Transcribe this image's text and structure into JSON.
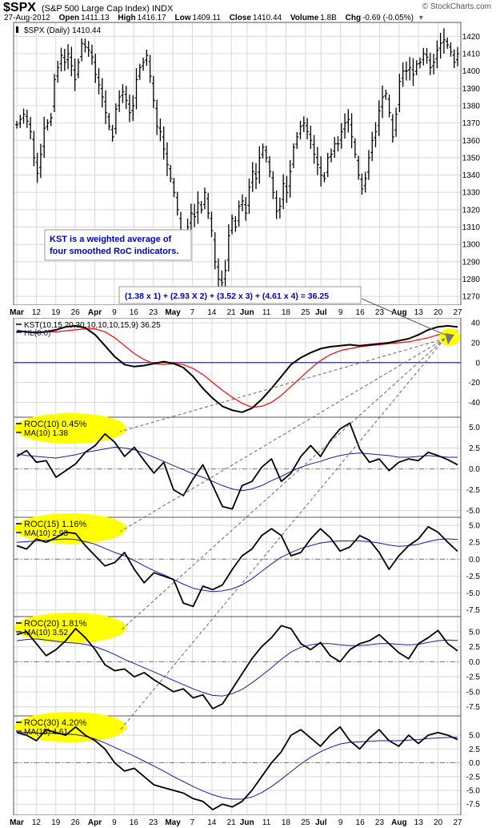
{
  "header": {
    "symbol": "$SPX",
    "name": "(S&P 500 Large Cap Index)",
    "exchange": "INDX",
    "date": "27-Aug-2012",
    "open_label": "Open",
    "open": "1411.13",
    "high_label": "High",
    "high": "1416.17",
    "low_label": "Low",
    "low": "1409.11",
    "close_label": "Close",
    "close": "1410.44",
    "volume_label": "Volume",
    "volume": "1.8B",
    "chg_label": "Chg",
    "chg": "-0.69 (-0.05%)",
    "copyright": "© StockCharts.com"
  },
  "colors": {
    "price_bars": "#000000",
    "kst_line": "#000000",
    "signal_line": "#ff0000",
    "ma_line": "#1a1aa8",
    "highlight": "#ffff00",
    "annotation_text": "#0000cc",
    "grid": "#d8d8d8"
  },
  "chart_data": {
    "type": "line",
    "x_axis_labels": [
      "Mar",
      "12",
      "19",
      "26",
      "Apr",
      "9",
      "16",
      "23",
      "May",
      "7",
      "14",
      "21",
      "Jun",
      "11",
      "18",
      "25",
      "Jul",
      "9",
      "16",
      "23",
      "Aug",
      "13",
      "20",
      "27"
    ],
    "panels": [
      {
        "id": "price",
        "legend": "$SPX (Daily) 1410.44",
        "ylim": [
          1265,
          1428
        ],
        "yticks": [
          1270,
          1280,
          1290,
          1300,
          1310,
          1320,
          1330,
          1340,
          1350,
          1360,
          1370,
          1380,
          1390,
          1400,
          1410,
          1420
        ],
        "series": [
          {
            "name": "$SPX",
            "values": [
              1369,
              1372,
              1375,
              1371,
              1365,
              1350,
              1341,
              1352,
              1367,
              1370,
              1373,
              1395,
              1402,
              1409,
              1405,
              1410,
              1403,
              1395,
              1405,
              1416,
              1414,
              1412,
              1408,
              1398,
              1392,
              1385,
              1376,
              1368,
              1362,
              1378,
              1385,
              1388,
              1383,
              1376,
              1380,
              1395,
              1402,
              1405,
              1409,
              1397,
              1383,
              1368,
              1365,
              1355,
              1346,
              1338,
              1330,
              1320,
              1303,
              1295,
              1310,
              1318,
              1316,
              1324,
              1320,
              1330,
              1318,
              1308,
              1290,
              1280,
              1278,
              1285,
              1305,
              1315,
              1310,
              1322,
              1325,
              1318,
              1333,
              1342,
              1338,
              1350,
              1356,
              1350,
              1342,
              1330,
              1319,
              1322,
              1335,
              1330,
              1342,
              1356,
              1362,
              1368,
              1370,
              1365,
              1360,
              1352,
              1346,
              1340,
              1338,
              1350,
              1352,
              1358,
              1358,
              1365,
              1370,
              1372,
              1362,
              1352,
              1340,
              1332,
              1338,
              1350,
              1360,
              1365,
              1377,
              1385,
              1387,
              1376,
              1362,
              1375,
              1394,
              1400,
              1400,
              1402,
              1398,
              1404,
              1405,
              1410,
              1408,
              1402,
              1405,
              1412,
              1416,
              1418,
              1415,
              1411,
              1405,
              1410
            ]
          }
        ],
        "annotations": [
          "KST is a weighted average of four smoothed RoC indicators.",
          "(1.38 x 1) + (2.93 X 2) + (3.52 x 3) + (4.61 x 4) = 36.25"
        ]
      },
      {
        "id": "kst",
        "legend": [
          "KST(10,15,20,30,10,10,10,15,9) 36.25",
          "HL(0.0)"
        ],
        "ylim": [
          -55,
          45
        ],
        "yticks": [
          -40,
          -20,
          0,
          20,
          40
        ],
        "series": [
          {
            "name": "KST(10,15,20,30,10,10,10,15,9)",
            "values": [
              32,
              31,
              30,
              31,
              33,
              36,
              37,
              35,
              28,
              17,
              6,
              -2,
              -4,
              -3,
              -1,
              1,
              -1,
              -5,
              -14,
              -26,
              -36,
              -44,
              -48,
              -50,
              -46,
              -37,
              -26,
              -14,
              -2,
              5,
              10,
              14,
              16,
              17,
              18,
              17,
              18,
              19,
              20,
              22,
              24,
              28,
              33,
              36,
              37,
              36
            ]
          },
          {
            "name": "Signal",
            "values": [
              32,
              31,
              31,
              31,
              31,
              32,
              33,
              34,
              34,
              31,
              25,
              17,
              9,
              3,
              -1,
              -2,
              -1,
              -2,
              -6,
              -12,
              -20,
              -28,
              -35,
              -41,
              -45,
              -44,
              -40,
              -33,
              -24,
              -15,
              -6,
              2,
              8,
              12,
              14,
              16,
              17,
              18,
              19,
              20,
              21,
              23,
              25,
              28,
              30,
              32
            ]
          }
        ]
      },
      {
        "id": "roc10",
        "legend": [
          "ROC(10) 0.45%",
          "MA(10) 1.38"
        ],
        "ylim": [
          -5.8,
          6.2
        ],
        "yticks": [
          -5.0,
          -2.5,
          0.0,
          2.5,
          5.0
        ],
        "series": [
          {
            "name": "ROC(10)",
            "values": [
              1.5,
              2.2,
              0.8,
              1.0,
              -1.0,
              -0.2,
              0.6,
              2.0,
              2.8,
              4.2,
              3.2,
              1.5,
              2.6,
              1.0,
              -0.5,
              0.8,
              -2.5,
              -3.2,
              -1.2,
              0.5,
              -2.0,
              -4.5,
              -4.8,
              -2.0,
              -1.5,
              0.2,
              1.2,
              -1.5,
              -0.5,
              1.5,
              2.8,
              1.5,
              3.4,
              4.8,
              5.5,
              2.4,
              0.8,
              1.2,
              -0.2,
              0.8,
              1.2,
              1.0,
              2.0,
              1.6,
              1.1,
              0.5
            ]
          },
          {
            "name": "MA(10)",
            "values": [
              1.8,
              1.6,
              1.5,
              1.4,
              1.3,
              1.5,
              1.7,
              2.0,
              2.2,
              2.4,
              2.6,
              2.5,
              2.3,
              1.9,
              1.4,
              0.9,
              0.4,
              -0.1,
              -0.6,
              -1.0,
              -1.5,
              -2.0,
              -2.4,
              -2.6,
              -2.4,
              -2.0,
              -1.4,
              -0.9,
              -0.3,
              0.2,
              0.6,
              0.9,
              1.3,
              1.6,
              1.8,
              1.9,
              1.8,
              1.7,
              1.6,
              1.4,
              1.4,
              1.5,
              1.6,
              1.5,
              1.4,
              1.4
            ]
          }
        ]
      },
      {
        "id": "roc15",
        "legend": [
          "ROC(15) 1.16%",
          "MA(10) 2.93"
        ],
        "ylim": [
          -8.5,
          6.2
        ],
        "yticks": [
          -7.5,
          -5.0,
          -2.5,
          0.0,
          2.5,
          5.0
        ],
        "series": [
          {
            "name": "ROC(15)",
            "values": [
              2.0,
              1.5,
              3.0,
              2.5,
              3.2,
              4.0,
              3.8,
              2.0,
              0.5,
              -1.0,
              -0.5,
              1.0,
              -1.5,
              -3.5,
              -2.0,
              -2.5,
              -3.0,
              -6.5,
              -7.0,
              -4.0,
              -4.5,
              -3.8,
              -1.5,
              0.5,
              1.5,
              3.5,
              4.5,
              3.5,
              0.5,
              1.0,
              3.0,
              4.5,
              3.2,
              1.2,
              1.8,
              3.5,
              2.8,
              1.0,
              -1.5,
              0.5,
              2.0,
              3.0,
              4.8,
              4.0,
              2.5,
              1.16
            ]
          },
          {
            "name": "MA(10)",
            "values": [
              2.5,
              2.6,
              2.7,
              2.8,
              2.9,
              3.0,
              2.9,
              2.6,
              2.2,
              1.6,
              1.0,
              0.5,
              -0.2,
              -1.0,
              -1.7,
              -2.3,
              -3.0,
              -3.7,
              -4.3,
              -4.6,
              -4.8,
              -4.7,
              -4.4,
              -3.8,
              -2.9,
              -1.8,
              -0.7,
              0.3,
              1.0,
              1.6,
              2.0,
              2.4,
              2.6,
              2.7,
              2.7,
              2.7,
              2.6,
              2.4,
              2.1,
              1.9,
              2.0,
              2.2,
              2.6,
              2.9,
              3.0,
              2.93
            ]
          }
        ]
      },
      {
        "id": "roc20",
        "legend": [
          "ROC(20) 1.81%",
          "MA(10) 3.52"
        ],
        "ylim": [
          -9.0,
          7.5
        ],
        "yticks": [
          -7.5,
          -5.0,
          -2.5,
          0.0,
          2.5,
          5.0
        ],
        "series": [
          {
            "name": "ROC(20)",
            "values": [
              4.5,
              5.0,
              3.0,
              1.0,
              2.0,
              3.5,
              5.5,
              4.0,
              2.0,
              -0.5,
              -1.5,
              -1.2,
              -2.5,
              -1.8,
              -3.0,
              -4.0,
              -5.0,
              -4.5,
              -6.0,
              -5.5,
              -7.8,
              -7.0,
              -4.5,
              -2.0,
              0.5,
              2.5,
              4.0,
              6.0,
              5.5,
              3.0,
              2.0,
              3.2,
              1.0,
              0.0,
              2.0,
              3.0,
              3.5,
              4.5,
              3.0,
              1.5,
              0.5,
              3.0,
              4.0,
              5.2,
              3.0,
              1.81
            ]
          },
          {
            "name": "MA(10)",
            "values": [
              3.5,
              3.7,
              3.8,
              3.6,
              3.4,
              3.2,
              3.1,
              2.9,
              2.5,
              1.9,
              1.2,
              0.4,
              -0.3,
              -1.0,
              -1.7,
              -2.4,
              -3.1,
              -3.8,
              -4.5,
              -5.1,
              -5.6,
              -5.7,
              -5.3,
              -4.6,
              -3.5,
              -2.3,
              -1.0,
              0.4,
              1.6,
              2.4,
              2.8,
              3.0,
              3.0,
              2.8,
              2.7,
              2.7,
              2.8,
              3.0,
              3.0,
              2.9,
              2.8,
              2.9,
              3.2,
              3.5,
              3.6,
              3.52
            ]
          }
        ]
      },
      {
        "id": "roc30",
        "legend": [
          "ROC(30) 4.20%",
          "MA(15) 4.61"
        ],
        "ylim": [
          -9.5,
          8.5
        ],
        "yticks": [
          -7.5,
          -5.0,
          -2.5,
          0.0,
          2.5,
          5.0
        ],
        "series": [
          {
            "name": "ROC(30)",
            "values": [
              5.5,
              5.0,
              4.0,
              6.0,
              5.5,
              5.0,
              6.5,
              5.0,
              4.0,
              2.5,
              0.0,
              -1.5,
              -1.0,
              -2.5,
              -4.0,
              -4.5,
              -5.0,
              -5.5,
              -6.5,
              -7.0,
              -8.5,
              -7.5,
              -8.0,
              -7.0,
              -5.0,
              -2.5,
              0.0,
              2.0,
              5.0,
              6.0,
              4.5,
              3.0,
              5.0,
              6.5,
              4.0,
              2.5,
              4.5,
              6.0,
              4.0,
              3.0,
              5.0,
              3.5,
              5.0,
              5.5,
              5.0,
              4.2
            ]
          },
          {
            "name": "MA(15)",
            "values": [
              5.5,
              5.5,
              5.4,
              5.4,
              5.3,
              5.2,
              5.1,
              4.8,
              4.3,
              3.6,
              2.8,
              2.0,
              1.2,
              0.3,
              -0.6,
              -1.5,
              -2.5,
              -3.4,
              -4.3,
              -5.1,
              -5.8,
              -6.3,
              -6.6,
              -6.6,
              -6.2,
              -5.4,
              -4.3,
              -3.0,
              -1.6,
              -0.2,
              1.0,
              2.0,
              2.8,
              3.4,
              3.7,
              3.8,
              3.9,
              4.0,
              4.0,
              4.0,
              4.1,
              4.2,
              4.4,
              4.5,
              4.6,
              4.61
            ]
          }
        ]
      }
    ]
  }
}
